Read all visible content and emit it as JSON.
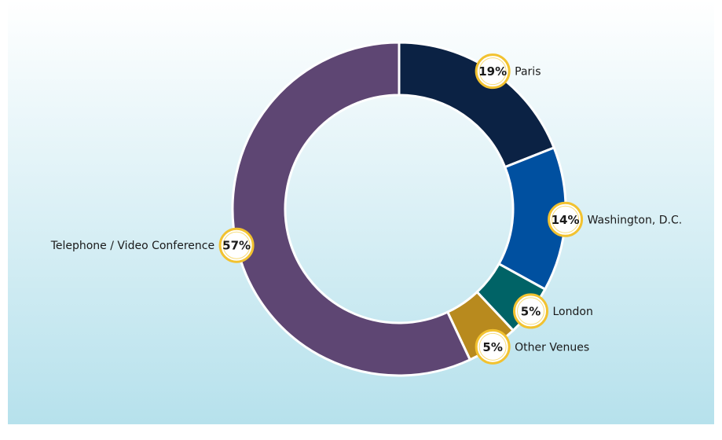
{
  "chart_data": {
    "type": "donut",
    "categories": [
      "Paris",
      "Washington, D.C.",
      "London",
      "Other Venues",
      "Telephone / Video Conference"
    ],
    "values": [
      19,
      14,
      5,
      5,
      57
    ],
    "value_labels": [
      "19%",
      "14%",
      "5%",
      "5%",
      "57%"
    ],
    "colors": [
      "#0b2244",
      "#0050a0",
      "#006366",
      "#b88a1e",
      "#5e4673"
    ]
  }
}
